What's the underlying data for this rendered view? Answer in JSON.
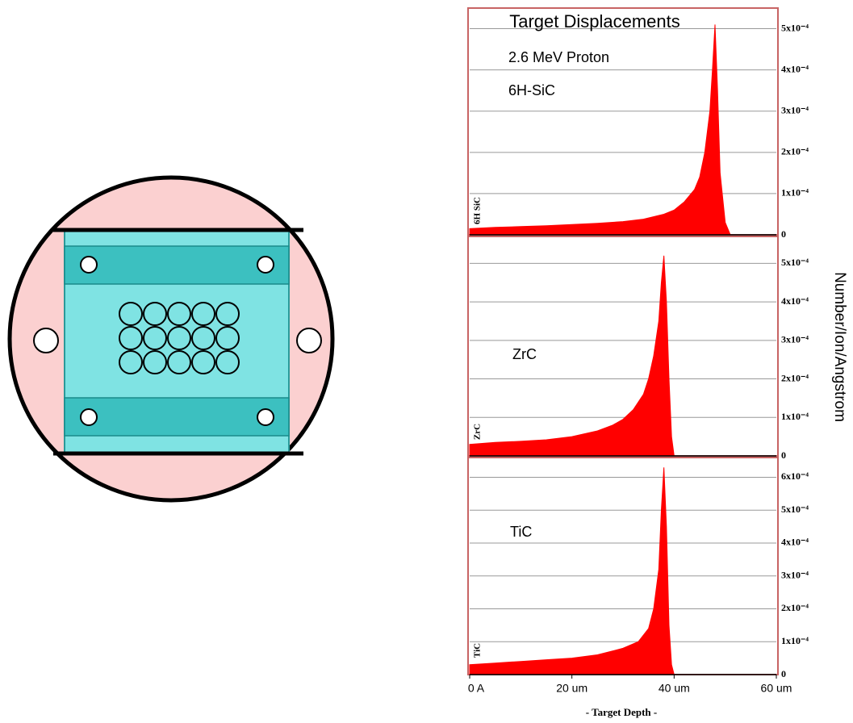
{
  "chart_data": [
    {
      "type": "area",
      "title": "Target Displacements",
      "annotations": [
        "2.6 MeV Proton",
        "6H-SiC"
      ],
      "side_label": "6H SiC",
      "color": "#ff0000",
      "x": [
        0,
        5,
        10,
        15,
        20,
        25,
        30,
        34,
        38,
        40,
        42,
        44,
        45,
        46,
        47,
        47.5,
        48,
        48.5,
        49,
        50,
        51
      ],
      "values": [
        1.5e-05,
        1.8e-05,
        2e-05,
        2.2e-05,
        2.5e-05,
        2.8e-05,
        3.2e-05,
        3.8e-05,
        5e-05,
        6e-05,
        8e-05,
        0.00011,
        0.00014,
        0.0002,
        0.0003,
        0.0004,
        0.00051,
        0.00035,
        0.00015,
        3e-05,
        0
      ],
      "xlim": [
        0,
        60
      ],
      "ylim": [
        0,
        0.00055
      ],
      "yticks": [
        0,
        {
          "value": 0.0001,
          "label": "1x10⁻⁴"
        },
        {
          "value": 0.0002,
          "label": "2x10⁻⁴"
        },
        {
          "value": 0.0003,
          "label": "3x10⁻⁴"
        },
        {
          "value": 0.0004,
          "label": "4x10⁻⁴"
        },
        {
          "value": 0.0005,
          "label": "5x10⁻⁴"
        }
      ],
      "grid": true
    },
    {
      "type": "area",
      "annotations": [
        "ZrC"
      ],
      "side_label": "ZrC",
      "ylabel": "Number/Ion/Angstrom",
      "color": "#ff0000",
      "x": [
        0,
        5,
        10,
        15,
        20,
        25,
        28,
        30,
        32,
        34,
        35,
        36,
        37,
        37.5,
        38,
        38.5,
        39,
        39.5,
        40
      ],
      "values": [
        3e-05,
        3.5e-05,
        3.8e-05,
        4.2e-05,
        5e-05,
        6.5e-05,
        8e-05,
        9.5e-05,
        0.00012,
        0.00016,
        0.0002,
        0.00026,
        0.00035,
        0.00045,
        0.00052,
        0.0004,
        0.0002,
        5e-05,
        0
      ],
      "xlim": [
        0,
        60
      ],
      "ylim": [
        0,
        0.00057
      ],
      "yticks": [
        0,
        {
          "value": 0.0001,
          "label": "1x10⁻⁴"
        },
        {
          "value": 0.0002,
          "label": "2x10⁻⁴"
        },
        {
          "value": 0.0003,
          "label": "3x10⁻⁴"
        },
        {
          "value": 0.0004,
          "label": "4x10⁻⁴"
        },
        {
          "value": 0.0005,
          "label": "5x10⁻⁴"
        }
      ],
      "grid": true
    },
    {
      "type": "area",
      "annotations": [
        "TiC"
      ],
      "side_label": "TiC",
      "xlabel": "- Target Depth -",
      "color": "#ff0000",
      "x": [
        0,
        5,
        10,
        15,
        20,
        25,
        30,
        33,
        35,
        36,
        37,
        37.5,
        38,
        38.5,
        39,
        39.5,
        40
      ],
      "values": [
        3e-05,
        3.5e-05,
        4e-05,
        4.5e-05,
        5e-05,
        6e-05,
        8e-05,
        0.0001,
        0.00014,
        0.0002,
        0.00032,
        0.0005,
        0.00063,
        0.00045,
        0.00015,
        3e-05,
        0
      ],
      "xlim": [
        0,
        60
      ],
      "ylim": [
        0,
        0.00066
      ],
      "xticks": [
        {
          "value": 0,
          "label": "0 A"
        },
        {
          "value": 20,
          "label": "20 um"
        },
        {
          "value": 40,
          "label": "40 um"
        },
        {
          "value": 60,
          "label": "60 um"
        }
      ],
      "yticks": [
        0,
        {
          "value": 0.0001,
          "label": "1x10⁻⁴"
        },
        {
          "value": 0.0002,
          "label": "2x10⁻⁴"
        },
        {
          "value": 0.0003,
          "label": "3x10⁻⁴"
        },
        {
          "value": 0.0004,
          "label": "4x10⁻⁴"
        },
        {
          "value": 0.0005,
          "label": "5x10⁻⁴"
        },
        {
          "value": 0.0006,
          "label": "6x10⁻⁴"
        }
      ],
      "grid": true
    }
  ]
}
